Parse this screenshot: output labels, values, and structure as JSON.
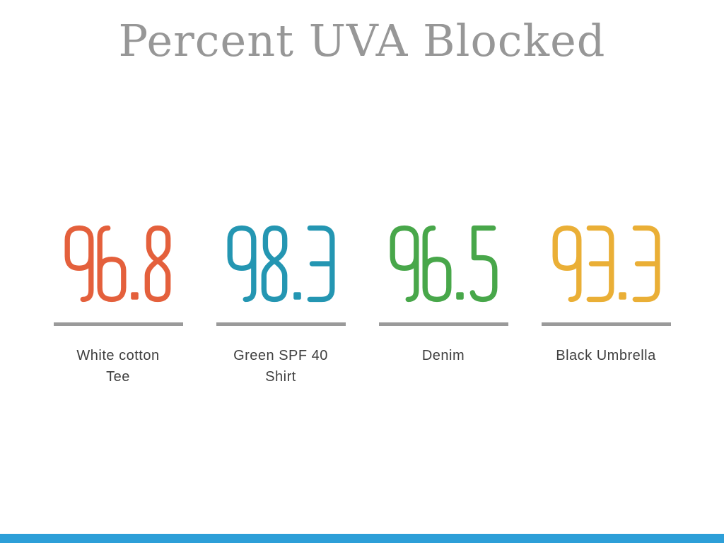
{
  "title": "Percent UVA Blocked",
  "chart_data": {
    "type": "bar",
    "title": "Percent UVA Blocked",
    "categories": [
      "White cotton Tee",
      "Green SPF 40 Shirt",
      "Denim",
      "Black Umbrella"
    ],
    "values": [
      96.8,
      98.3,
      96.5,
      93.3
    ],
    "series": [
      {
        "name": "Percent UVA Blocked",
        "values": [
          96.8,
          98.3,
          96.5,
          93.3
        ]
      }
    ],
    "xlabel": "",
    "ylabel": "",
    "ylim": [
      0,
      100
    ],
    "grid": false,
    "legend": "none",
    "layout_note": "Big-number stat panels; each value shown as large colored thin-stroke digits above an equal-length gray underline (underlines are not proportional to values)"
  },
  "stats": [
    {
      "value": "96.8",
      "label_lines": [
        "White cotton",
        "Tee"
      ],
      "color": "#e4603c"
    },
    {
      "value": "98.3",
      "label_lines": [
        "Green SPF 40",
        "Shirt"
      ],
      "color": "#2496b2"
    },
    {
      "value": "96.5",
      "label_lines": [
        "Denim"
      ],
      "color": "#48a74a"
    },
    {
      "value": "93.3",
      "label_lines": [
        "Black Umbrella"
      ],
      "color": "#eaaf36"
    }
  ],
  "colors": {
    "background": "#ffffff",
    "title_text": "#979797",
    "underline": "#9a9a9a",
    "label_text": "#3f3f3f",
    "bottom_accent_bar": "#2d9fd8"
  }
}
